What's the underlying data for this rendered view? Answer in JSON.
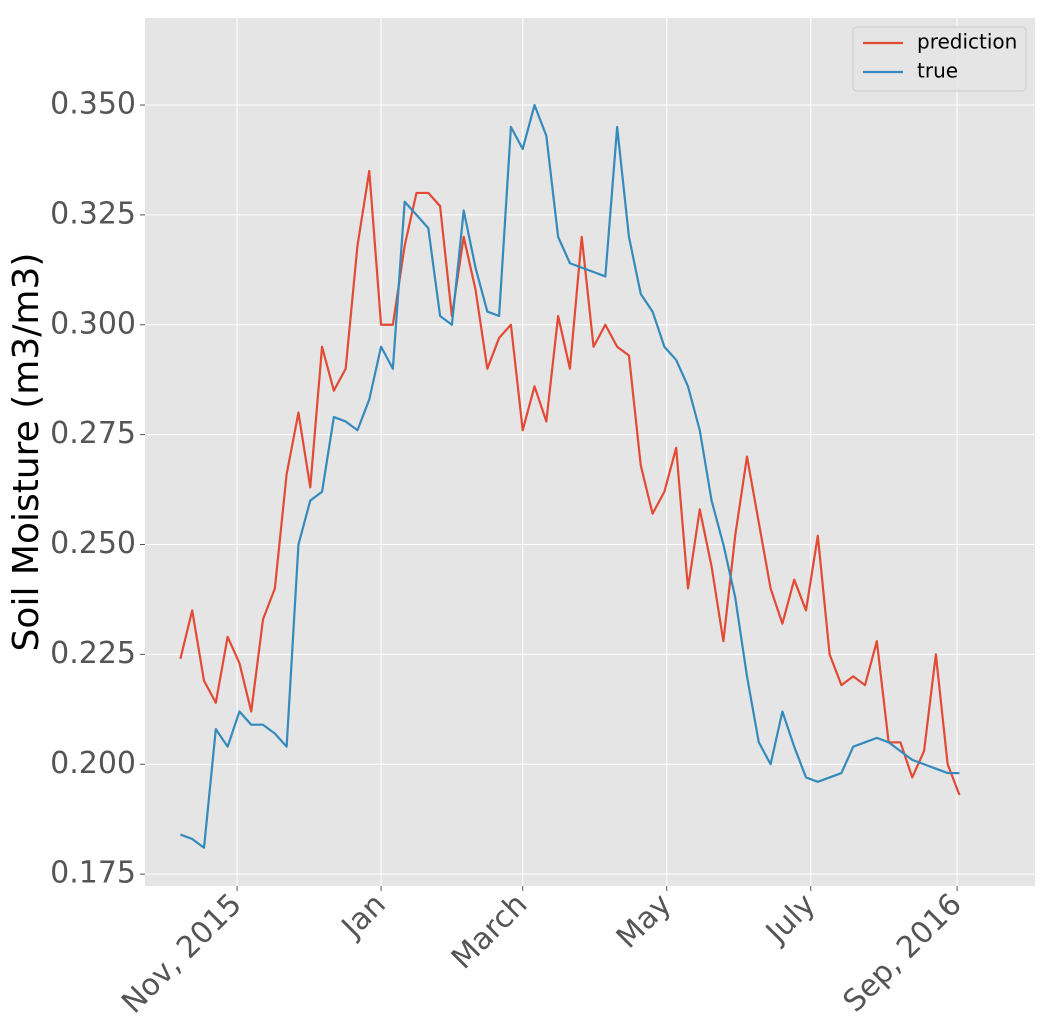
{
  "chart_data": {
    "type": "line",
    "ylabel": "Soil Moisture (m3/m3)",
    "x": [
      -24,
      -19,
      -14,
      -9,
      -4,
      1,
      6,
      11,
      16,
      21,
      26,
      31,
      36,
      41,
      46,
      51,
      56,
      61,
      66,
      71,
      76,
      81,
      86,
      91,
      96,
      101,
      106,
      111,
      116,
      121,
      126,
      131,
      136,
      141,
      146,
      151,
      156,
      161,
      166,
      171,
      176,
      181,
      186,
      191,
      196,
      201,
      206,
      211,
      216,
      221,
      226,
      231,
      236,
      241,
      246,
      251,
      256,
      261,
      266,
      271,
      276,
      281,
      286,
      291,
      296,
      301,
      306
    ],
    "series": [
      {
        "name": "prediction",
        "color": "#E24A33",
        "values": [
          0.224,
          0.235,
          0.219,
          0.214,
          0.229,
          0.223,
          0.212,
          0.233,
          0.24,
          0.266,
          0.28,
          0.263,
          0.295,
          0.285,
          0.29,
          0.318,
          0.335,
          0.3,
          0.3,
          0.318,
          0.33,
          0.33,
          0.327,
          0.302,
          0.32,
          0.308,
          0.29,
          0.297,
          0.3,
          0.276,
          0.286,
          0.278,
          0.302,
          0.29,
          0.32,
          0.295,
          0.3,
          0.295,
          0.293,
          0.268,
          0.257,
          0.262,
          0.272,
          0.24,
          0.258,
          0.245,
          0.228,
          0.252,
          0.27,
          0.255,
          0.24,
          0.232,
          0.242,
          0.235,
          0.252,
          0.225,
          0.218,
          0.22,
          0.218,
          0.228,
          0.205,
          0.205,
          0.197,
          0.203,
          0.225,
          0.2,
          0.193
        ]
      },
      {
        "name": "true",
        "color": "#348ABD",
        "values": [
          0.184,
          0.183,
          0.181,
          0.208,
          0.204,
          0.212,
          0.209,
          0.209,
          0.207,
          0.204,
          0.25,
          0.26,
          0.262,
          0.279,
          0.278,
          0.276,
          0.283,
          0.295,
          0.29,
          0.328,
          0.325,
          0.322,
          0.302,
          0.3,
          0.326,
          0.313,
          0.303,
          0.302,
          0.345,
          0.34,
          0.35,
          0.343,
          0.32,
          0.314,
          0.313,
          0.312,
          0.311,
          0.345,
          0.32,
          0.307,
          0.303,
          0.295,
          0.292,
          0.286,
          0.276,
          0.26,
          0.25,
          0.238,
          0.22,
          0.205,
          0.2,
          0.212,
          0.204,
          0.197,
          0.196,
          0.197,
          0.198,
          0.204,
          0.205,
          0.206,
          0.205,
          0.203,
          0.201,
          0.2,
          0.199,
          0.198,
          0.198
        ]
      }
    ],
    "xlim": [
      -39,
      338
    ],
    "xticks": [
      {
        "value": 0,
        "label": "Nov, 2015"
      },
      {
        "value": 61,
        "label": "Jan"
      },
      {
        "value": 121,
        "label": "March"
      },
      {
        "value": 182,
        "label": "May"
      },
      {
        "value": 243,
        "label": "July"
      },
      {
        "value": 305,
        "label": "Sep, 2016"
      }
    ],
    "ylim": [
      0.1723,
      0.3698
    ],
    "yticks": [
      0.175,
      {
        "value": 0.2,
        "label": "0.200"
      },
      0.225,
      {
        "value": 0.25,
        "label": "0.250"
      },
      0.275,
      {
        "value": 0.3,
        "label": "0.300"
      },
      0.325,
      {
        "value": 0.35,
        "label": "0.350"
      }
    ],
    "grid": true,
    "legend": "upper right"
  }
}
